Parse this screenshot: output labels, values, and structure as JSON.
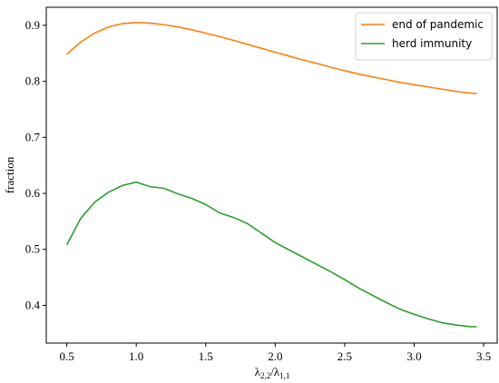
{
  "chart_data": {
    "type": "line",
    "xlabel": [
      "λ",
      "2,2",
      "/λ",
      "1,1"
    ],
    "ylabel": "fraction",
    "x": [
      0.5,
      0.6,
      0.7,
      0.8,
      0.9,
      1.0,
      1.1,
      1.2,
      1.3,
      1.4,
      1.5,
      1.6,
      1.7,
      1.8,
      1.9,
      2.0,
      2.1,
      2.2,
      2.3,
      2.4,
      2.5,
      2.6,
      2.7,
      2.8,
      2.9,
      3.0,
      3.1,
      3.2,
      3.3,
      3.4,
      3.45
    ],
    "series": [
      {
        "name": "end of pandemic",
        "color": "#ff7f0e",
        "values": [
          0.848,
          0.87,
          0.886,
          0.897,
          0.903,
          0.905,
          0.904,
          0.901,
          0.897,
          0.892,
          0.886,
          0.88,
          0.873,
          0.866,
          0.859,
          0.852,
          0.845,
          0.838,
          0.832,
          0.825,
          0.819,
          0.813,
          0.808,
          0.803,
          0.798,
          0.794,
          0.79,
          0.786,
          0.782,
          0.779,
          0.778
        ]
      },
      {
        "name": "herd immunity",
        "color": "#2ca02c",
        "values": [
          0.508,
          0.555,
          0.584,
          0.602,
          0.614,
          0.62,
          0.612,
          0.609,
          0.599,
          0.591,
          0.58,
          0.565,
          0.557,
          0.546,
          0.529,
          0.512,
          0.499,
          0.486,
          0.473,
          0.46,
          0.446,
          0.431,
          0.418,
          0.405,
          0.393,
          0.384,
          0.376,
          0.369,
          0.365,
          0.362,
          0.362
        ]
      }
    ],
    "xlim": [
      0.3525,
      3.5975
    ],
    "xticks": [
      {
        "value": 0.5,
        "label": "0.5"
      },
      {
        "value": 1.0,
        "label": "1.0"
      },
      {
        "value": 1.5,
        "label": "1.5"
      },
      {
        "value": 2.0,
        "label": "2.0"
      },
      {
        "value": 2.5,
        "label": "2.5"
      },
      {
        "value": 3.0,
        "label": "3.0"
      },
      {
        "value": 3.5,
        "label": "3.5"
      }
    ],
    "ylim": [
      0.3327,
      0.9322
    ],
    "yticks": [
      0.4,
      0.5,
      0.6,
      0.7,
      0.8,
      0.9
    ],
    "legend": "upper right",
    "grid": false
  }
}
